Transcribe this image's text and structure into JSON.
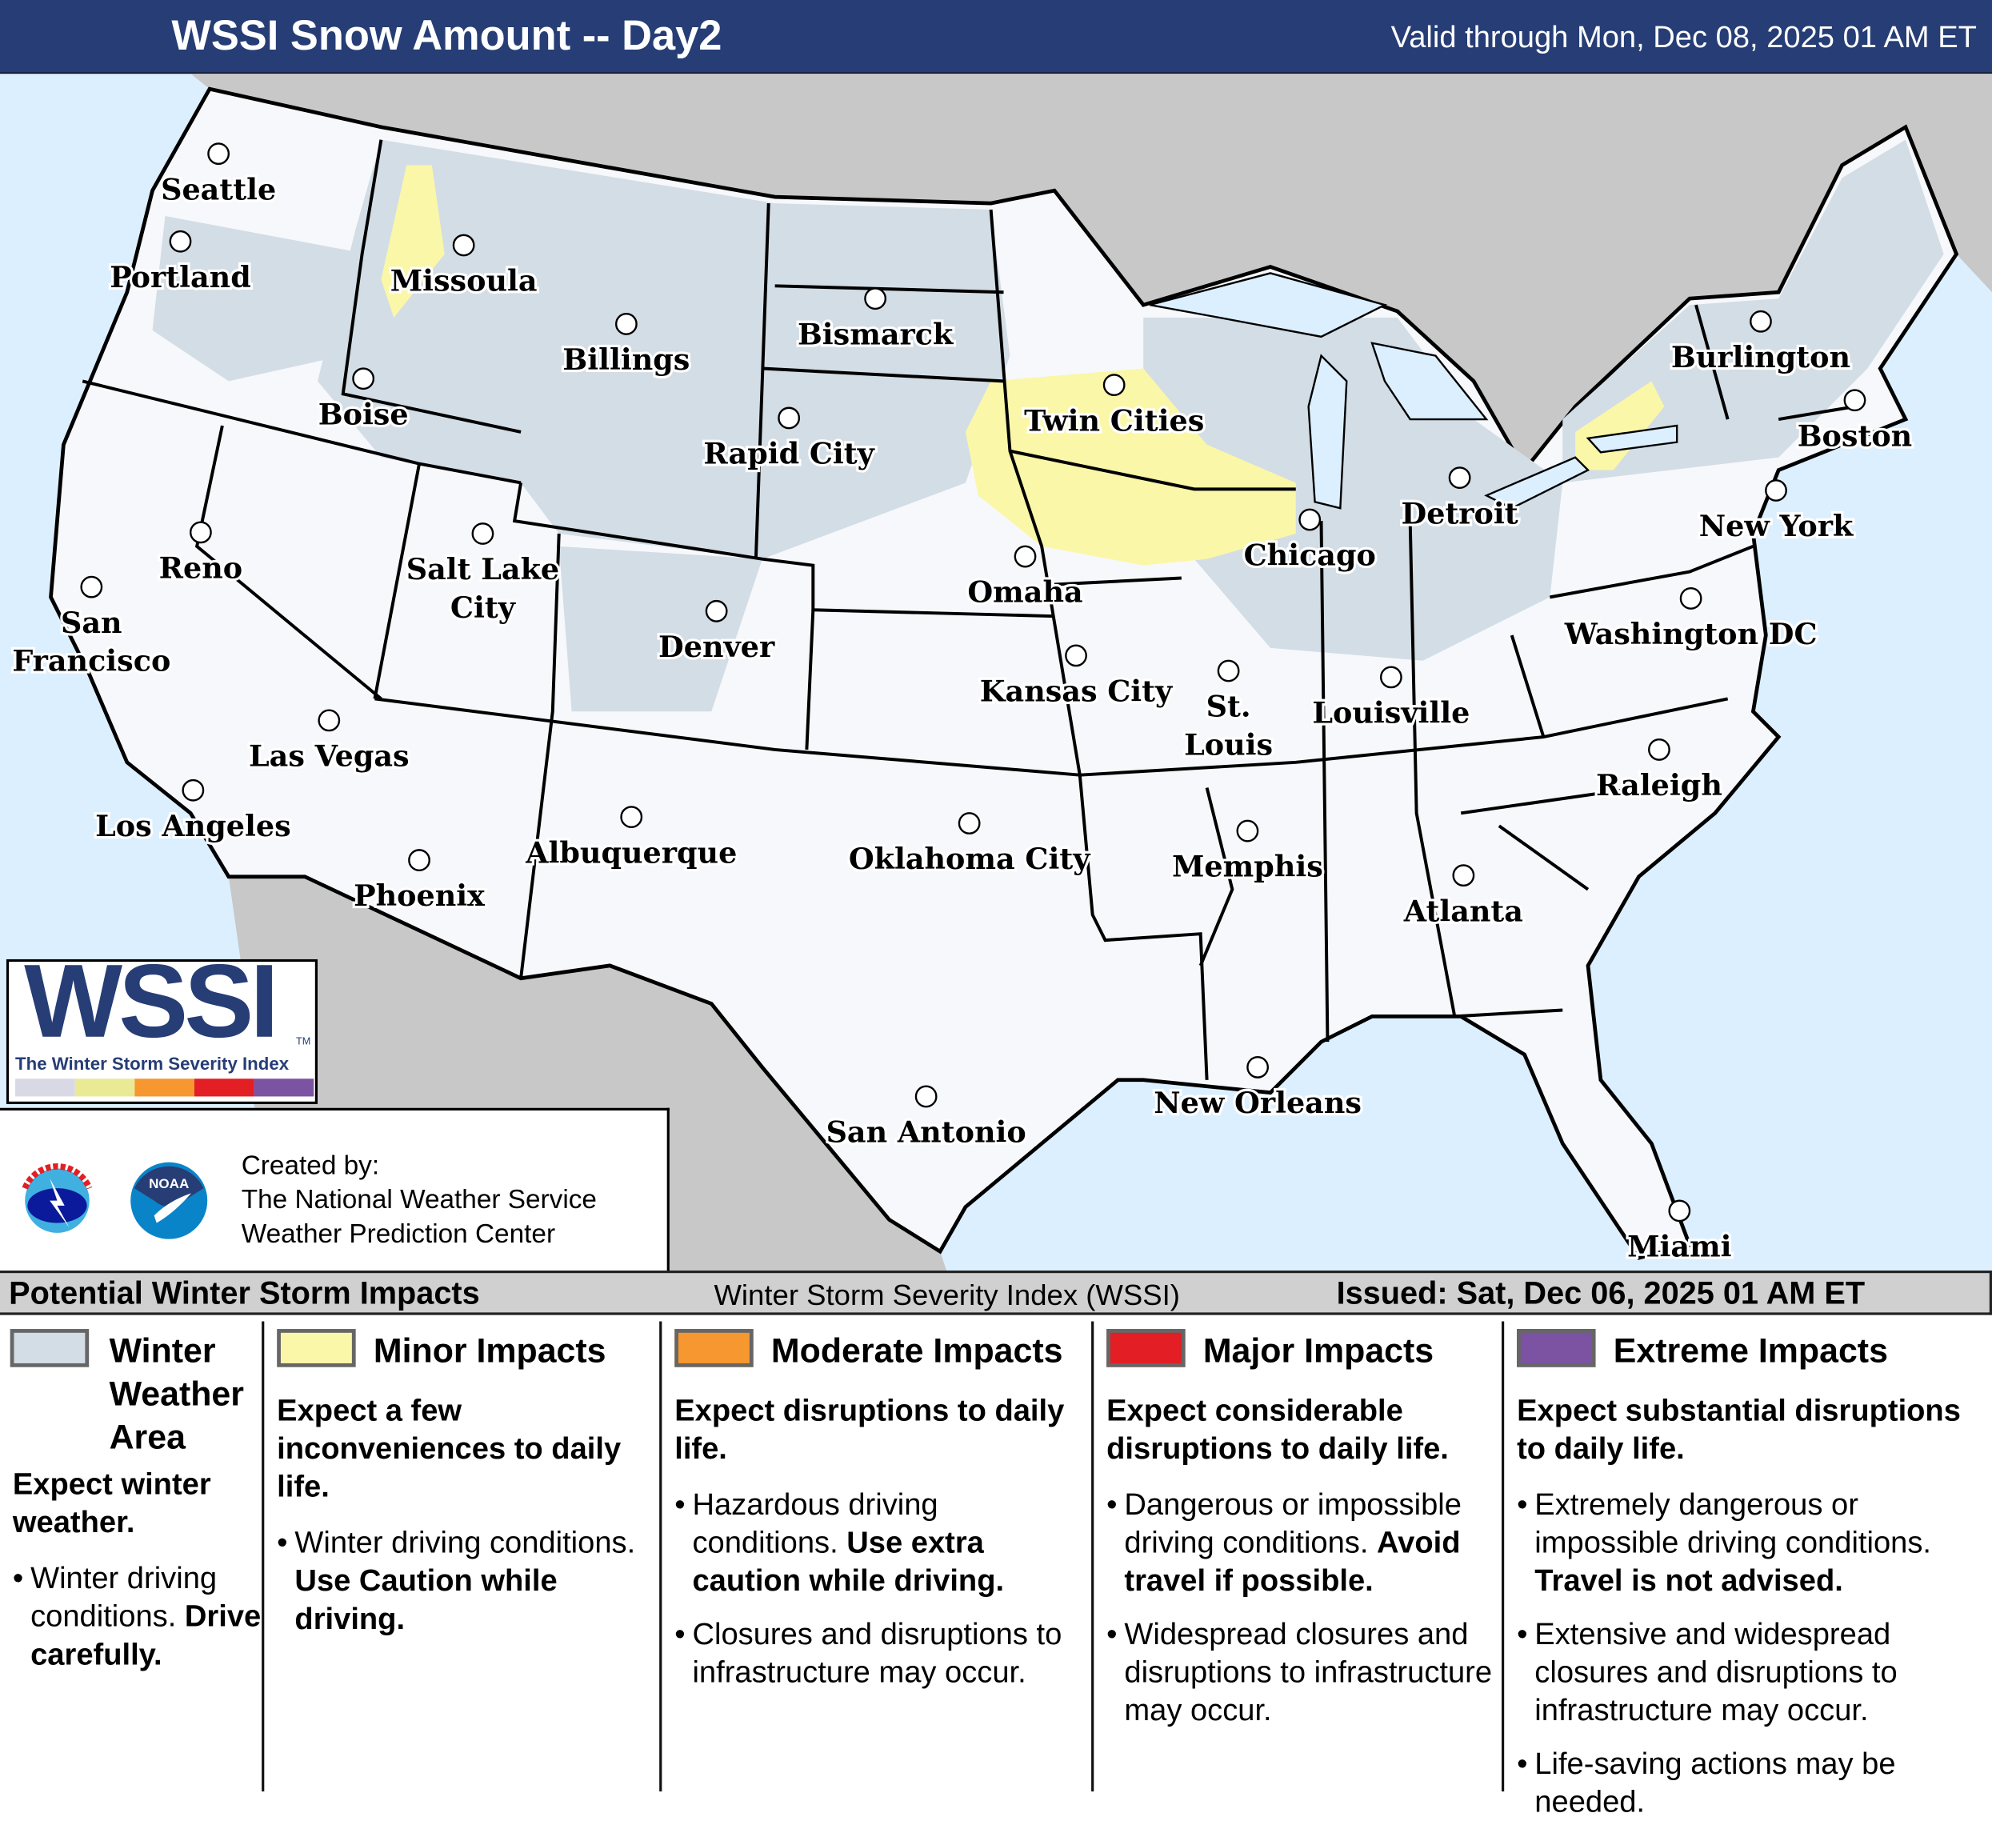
{
  "header": {
    "title": "WSSI Snow Amount -- Day2",
    "valid": "Valid through Mon, Dec 08, 2025 01 AM ET"
  },
  "colors": {
    "header": "#263d75",
    "ocean": "#dcefff",
    "foreign_land": "#c8c8c8",
    "land": "#f7f8fb",
    "winter_weather_area": "#d3dde5",
    "minor": "#fbf7a8",
    "moderate": "#f7972f",
    "major": "#e31e25",
    "extreme": "#7c52a2"
  },
  "map": {
    "cities": [
      "Seattle",
      "Portland",
      "Missoula",
      "Billings",
      "Bismarck",
      "Boise",
      "Rapid City",
      "Twin Cities",
      "Burlington",
      "Boston",
      "Detroit",
      "New York",
      "Chicago",
      "Reno",
      "Salt Lake City",
      "Omaha",
      "Denver",
      "San Francisco",
      "Washington DC",
      "Kansas City",
      "St. Louis",
      "Louisville",
      "Las Vegas",
      "Raleigh",
      "Los Angeles",
      "Albuquerque",
      "Oklahoma City",
      "Memphis",
      "Phoenix",
      "Atlanta",
      "New Orleans",
      "San Antonio",
      "Miami"
    ]
  },
  "logo": {
    "name": "WSSI",
    "tm": "TM",
    "subtitle": "The Winter Storm Severity Index"
  },
  "credits": {
    "line1": "Created by:",
    "line2": "The National Weather Service",
    "line3": "Weather Prediction Center",
    "nws_seal": "NATIONAL WEATHER SERVICE",
    "noaa_seal": "NOAA"
  },
  "legend": {
    "heading": "Potential Winter Storm Impacts",
    "center": "Winter Storm Severity Index (WSSI)",
    "issued": "Issued: Sat, Dec 06, 2025 01 AM ET",
    "categories": [
      {
        "title": "Winter Weather Area",
        "expect": "Expect winter weather.",
        "bullets": [
          {
            "text": "Winter driving conditions. ",
            "bold": "Drive carefully."
          }
        ]
      },
      {
        "title": "Minor Impacts",
        "expect": "Expect a few inconveniences to daily life.",
        "bullets": [
          {
            "text": "Winter driving conditions. ",
            "bold": "Use Caution while driving."
          }
        ]
      },
      {
        "title": "Moderate Impacts",
        "expect": "Expect disruptions to daily life.",
        "bullets": [
          {
            "text": "Hazardous driving conditions. ",
            "bold": "Use extra caution while driving."
          },
          {
            "text": "Closures and disruptions to infrastructure may occur.",
            "bold": ""
          }
        ]
      },
      {
        "title": "Major Impacts",
        "expect": "Expect considerable disruptions to daily life.",
        "bullets": [
          {
            "text": "Dangerous or impossible driving conditions. ",
            "bold": "Avoid travel if possible."
          },
          {
            "text": "Widespread closures and disruptions to infrastructure may occur.",
            "bold": ""
          }
        ]
      },
      {
        "title": "Extreme Impacts",
        "expect": "Expect substantial disruptions to daily life.",
        "bullets": [
          {
            "text": "Extremely dangerous or impossible driving conditions. ",
            "bold": "Travel is not advised."
          },
          {
            "text": "Extensive and widespread closures and disruptions to infrastructure may occur.",
            "bold": ""
          },
          {
            "text": "Life-saving actions may be needed.",
            "bold": ""
          }
        ]
      }
    ]
  }
}
